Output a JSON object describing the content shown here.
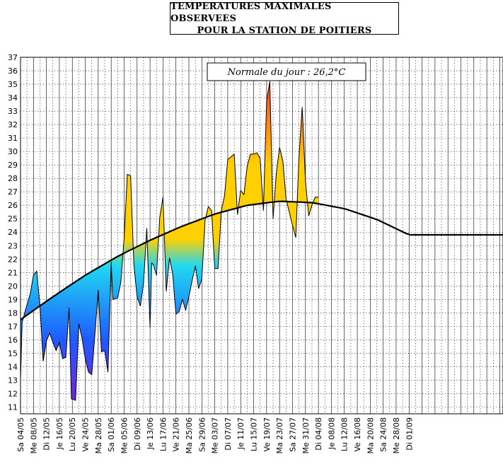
{
  "title": {
    "line1": "TEMPERATURES MAXIMALES OBSERVEES",
    "line2": "POUR LA STATION DE POITIERS"
  },
  "annotation": "Normale du jour : 26,2°C",
  "colors": {
    "cold": "#7a1bd8",
    "cool": "#1e5cff",
    "mild": "#20d8f0",
    "warm": "#ffd000",
    "hot": "#ff2a2a",
    "normal_line": "#000000",
    "grid": "#000000"
  },
  "chart_data": {
    "type": "area",
    "title": "TEMPERATURES MAXIMALES OBSERVEES POUR LA STATION DE POITIERS",
    "ylim": [
      10.5,
      37
    ],
    "yticks": [
      11,
      12,
      13,
      14,
      15,
      16,
      17,
      18,
      19,
      20,
      21,
      22,
      23,
      24,
      25,
      26,
      27,
      28,
      29,
      30,
      31,
      32,
      33,
      34,
      35,
      36,
      37
    ],
    "xlim": [
      0,
      149
    ],
    "x_tick_labels": [
      "Sa 04/05",
      "Me 08/05",
      "Di 12/05",
      "Je 16/05",
      "Lu 20/05",
      "Ve 24/05",
      "Ma 28/05",
      "Sa 01/06",
      "Me 05/06",
      "Di 09/06",
      "Je 13/06",
      "Lu 17/06",
      "Ve 21/06",
      "Ma 25/06",
      "Sa 29/06",
      "Me 03/07",
      "Di 07/07",
      "Je 11/07",
      "Lu 15/07",
      "Ve 19/07",
      "Ma 23/07",
      "Sa 27/07",
      "Me 31/07",
      "Di 04/08",
      "Je 08/08",
      "Lu 12/08",
      "Ve 16/08",
      "Ma 20/08",
      "Sa 24/08",
      "Me 28/08",
      "Di 01/09"
    ],
    "x_tick_days": [
      0,
      4,
      8,
      12,
      16,
      20,
      24,
      28,
      32,
      36,
      40,
      44,
      48,
      52,
      56,
      60,
      64,
      68,
      72,
      76,
      80,
      84,
      88,
      92,
      96,
      100,
      104,
      108,
      112,
      116,
      120
    ],
    "series": [
      {
        "name": "Temperature maximale observee",
        "x": [
          0,
          0.5,
          1.5,
          3,
          4,
          5,
          6,
          7,
          8,
          9,
          10,
          11,
          12,
          13,
          14,
          15,
          15.7,
          16,
          17,
          18,
          19,
          20,
          21,
          22,
          23,
          24,
          25,
          26,
          27,
          28,
          28.5,
          30,
          31,
          32,
          33,
          34,
          35,
          36,
          37,
          38,
          39,
          40,
          40.5,
          41,
          42,
          43,
          44,
          45,
          46,
          47,
          48,
          49,
          50,
          51,
          52,
          53,
          54,
          55,
          56,
          57,
          58,
          59,
          60,
          61,
          62,
          63,
          64,
          65,
          66,
          67,
          68,
          69,
          70,
          71,
          72,
          73,
          74,
          75,
          76,
          77,
          78,
          79,
          80,
          81,
          82,
          83,
          84,
          85,
          86,
          87,
          88,
          89,
          90,
          91,
          92
        ],
        "y": [
          13,
          17.3,
          18.2,
          19.4,
          20.8,
          21.1,
          18.5,
          14.4,
          15.9,
          16.5,
          15.8,
          15.2,
          15.8,
          14.6,
          14.7,
          18.4,
          11.6,
          11.6,
          11.5,
          17.2,
          16.1,
          14.6,
          13.6,
          13.4,
          16.5,
          19.7,
          15.1,
          15.2,
          13.6,
          21.8,
          19,
          19.1,
          20.3,
          23.6,
          28.3,
          28.2,
          21.6,
          19.2,
          18.5,
          20.2,
          24.3,
          16.9,
          21.7,
          21.6,
          20.8,
          25.1,
          26.6,
          19.6,
          22.1,
          20.9,
          17.9,
          18.1,
          19,
          18.2,
          19.2,
          20.4,
          21.5,
          19.8,
          20.5,
          24.9,
          25.9,
          25.6,
          21.3,
          21.3,
          25.6,
          26.7,
          29.4,
          29.6,
          29.8,
          25.3,
          27.1,
          26.8,
          28.9,
          29.8,
          29.8,
          29.9,
          29.5,
          25.6,
          33.8,
          35.2,
          25,
          28.4,
          30.3,
          29.3,
          26.5,
          25.5,
          24.5,
          23.6,
          29.6,
          33.3,
          27.8,
          25.2,
          26,
          26.6,
          26.6
        ]
      },
      {
        "name": "Normale du jour",
        "x": [
          0,
          10,
          20,
          30,
          40,
          50,
          60,
          70,
          80,
          90,
          100,
          110,
          120
        ],
        "y": [
          17.5,
          19.2,
          20.8,
          22.2,
          23.4,
          24.45,
          25.35,
          26.0,
          26.3,
          26.2,
          25.75,
          24.95,
          23.8
        ]
      }
    ]
  }
}
